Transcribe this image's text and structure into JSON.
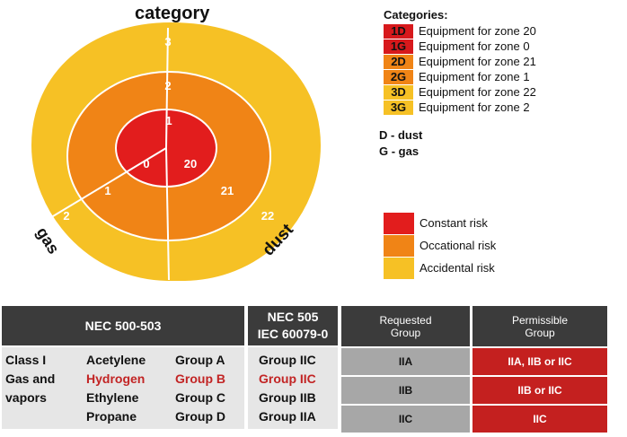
{
  "diagram": {
    "title": "category",
    "side_labels": {
      "left": "gas",
      "right": "dust"
    },
    "rings": {
      "outer": {
        "top": "3",
        "left": "2",
        "right": "22"
      },
      "middle": {
        "top": "2",
        "left": "1",
        "right": "21"
      },
      "inner": {
        "top": "1",
        "left": "0",
        "right": "20"
      }
    },
    "colors": {
      "constant": "#e21d1d",
      "occasional": "#f08416",
      "accidental": "#f6c125"
    }
  },
  "categories_legend": {
    "header": "Categories:",
    "items": [
      {
        "code": "1D",
        "label": "Equipment for zone 20",
        "color": "#d7191c"
      },
      {
        "code": "1G",
        "label": "Equipment for zone 0",
        "color": "#d7191c"
      },
      {
        "code": "2D",
        "label": "Equipment for zone 21",
        "color": "#f08416"
      },
      {
        "code": "2G",
        "label": "Equipment for zone 1",
        "color": "#f08416"
      },
      {
        "code": "3D",
        "label": "Equipment for zone 22",
        "color": "#f6c125"
      },
      {
        "code": "3G",
        "label": "Equipment for zone 2",
        "color": "#f6c125"
      }
    ]
  },
  "notes": {
    "dust": "D - dust",
    "gas": "G - gas"
  },
  "risk_legend": [
    {
      "label": "Constant risk",
      "color": "#e21d1d"
    },
    {
      "label": "Occational risk",
      "color": "#f08416"
    },
    {
      "label": "Accidental risk",
      "color": "#f6c125"
    }
  ],
  "nec_table": {
    "header_left": "NEC 500-503",
    "header_right_line1": "NEC 505",
    "header_right_line2": "IEC 60079-0",
    "class_lines": [
      "Class I",
      "Gas and",
      "vapors"
    ],
    "gases": [
      "Acetylene",
      "Hydrogen",
      "Ethylene",
      "Propane"
    ],
    "groups": [
      "Group A",
      "Group B",
      "Group C",
      "Group D"
    ],
    "iec_groups": [
      "Group IIC",
      "Group IIC",
      "Group IIB",
      "Group IIA"
    ]
  },
  "group_table": {
    "headers": [
      "Requested Group",
      "Permissible Group"
    ],
    "header_line1": [
      "Requested",
      "Permissible"
    ],
    "header_line2": [
      "Group",
      "Group"
    ],
    "rows": [
      {
        "requested": "IIA",
        "permissible": "IIA, IIB or IIC"
      },
      {
        "requested": "IIB",
        "permissible": "IIB or IIC"
      },
      {
        "requested": "IIC",
        "permissible": "IIC"
      }
    ]
  }
}
